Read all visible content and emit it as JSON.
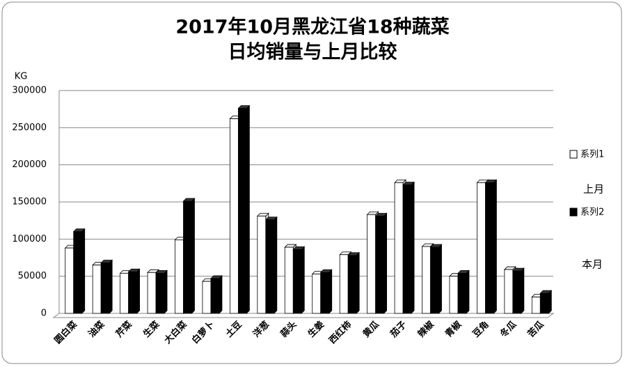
{
  "chart_data": {
    "type": "bar",
    "title": [
      "2017年10月黑龙江省18种蔬菜",
      "日均销量与上月比较"
    ],
    "y_label": "KG",
    "categories": [
      "圆白菜",
      "油菜",
      "芹菜",
      "生菜",
      "大白菜",
      "白萝卜",
      "土豆",
      "洋葱",
      "蒜头",
      "生姜",
      "西红柿",
      "黄瓜",
      "茄子",
      "辣椒",
      "青椒",
      "豆角",
      "冬瓜",
      "苦瓜"
    ],
    "series": [
      {
        "name": "系列1",
        "color": "#ffffff",
        "values": [
          88000,
          65000,
          54000,
          55000,
          99000,
          43000,
          262000,
          131000,
          89000,
          53000,
          79000,
          133000,
          176000,
          90000,
          50000,
          176000,
          59000,
          22000
        ]
      },
      {
        "name": "系列2",
        "color": "#000000",
        "values": [
          110000,
          68000,
          56000,
          54000,
          151000,
          47000,
          276000,
          126000,
          86000,
          55000,
          78000,
          131000,
          173000,
          89000,
          54000,
          176000,
          57000,
          27000
        ]
      }
    ],
    "annotations": [
      "上月",
      "本月"
    ],
    "ylim": [
      0,
      300000
    ],
    "yticks": [
      0,
      50000,
      100000,
      150000,
      200000,
      250000,
      300000
    ],
    "grid": true
  }
}
